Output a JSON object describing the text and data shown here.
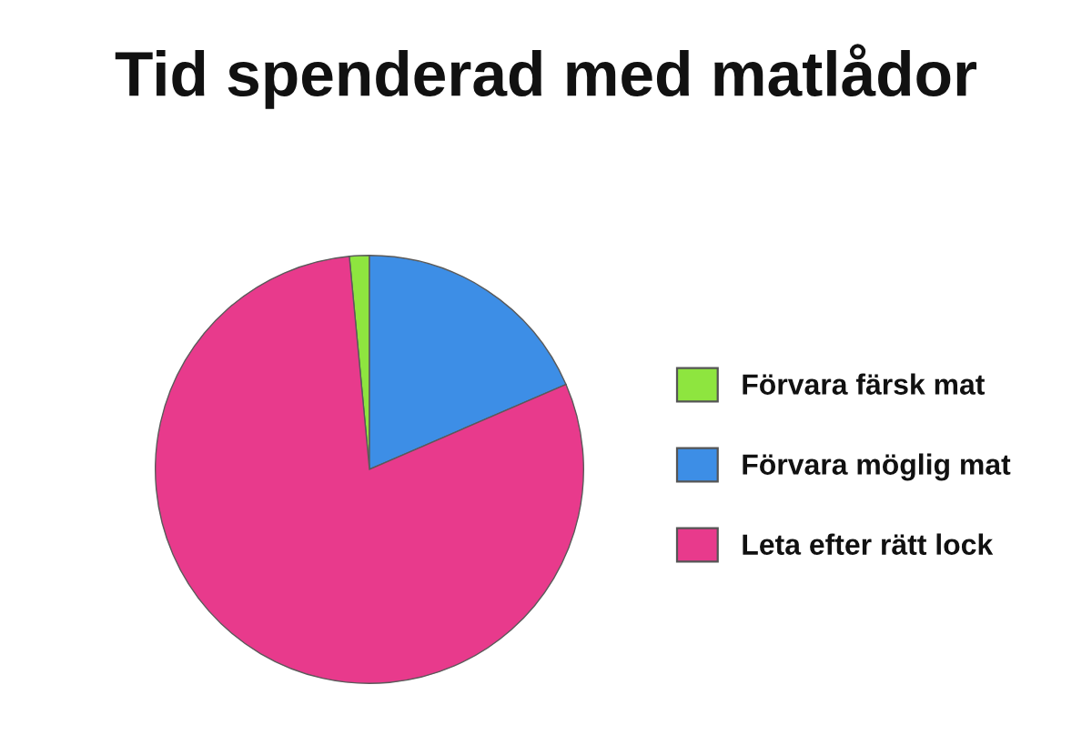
{
  "chart_data": {
    "type": "pie",
    "title": "Tid spenderad med matlådor",
    "categories": [
      "Förvara färsk mat",
      "Förvara möglig mat",
      "Leta efter rätt lock"
    ],
    "values": [
      1.5,
      18.5,
      80
    ],
    "colors": [
      "#8ee53f",
      "#3d8ee6",
      "#e83a8c"
    ],
    "legend": "right"
  }
}
